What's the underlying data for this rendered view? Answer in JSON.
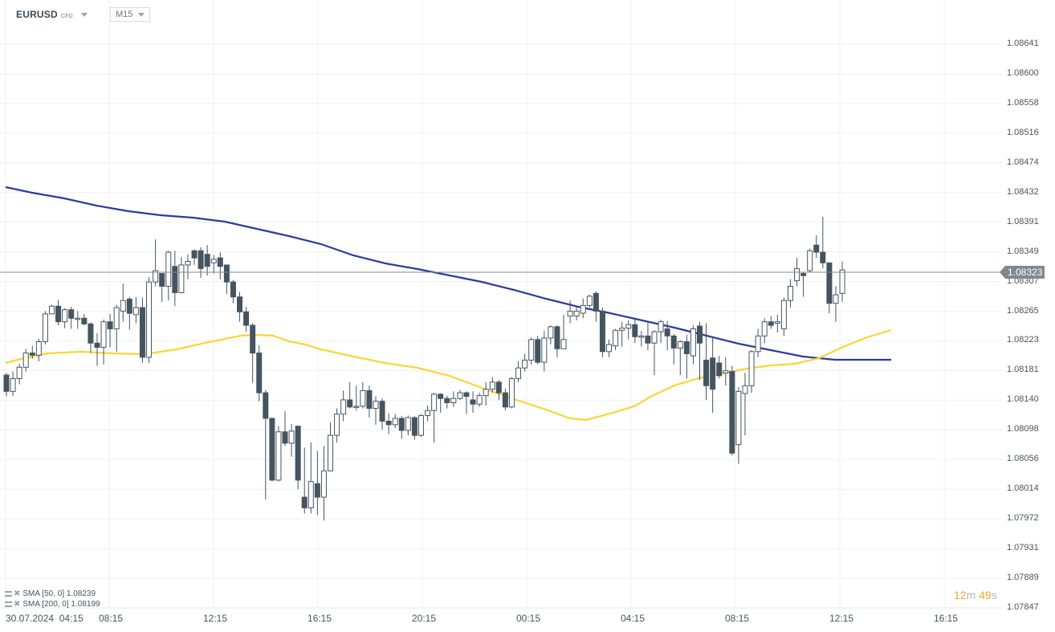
{
  "header": {
    "symbol": "EURUSD",
    "instrument_type": "CFD",
    "timeframe": "M15"
  },
  "legend": [
    {
      "label": "SMA [50, 0] 1.08239"
    },
    {
      "label": "SMA [200, 0] 1.08199"
    }
  ],
  "countdown": {
    "minutes": "12",
    "min_unit": "m",
    "seconds": "49",
    "sec_unit": "s"
  },
  "current_price": "1.08323",
  "colors": {
    "bull_fill": "#ffffff",
    "bear_fill": "#455560",
    "candle_stroke": "#455560",
    "sma50": "#fbd535",
    "sma200": "#2e3b9e",
    "grid": "#f0f0f0",
    "price_line": "#7f8a90",
    "countdown": "#f5a623"
  },
  "chart_data": {
    "type": "candlestick",
    "title": "EURUSD CFD M15",
    "xlabel": "",
    "ylabel": "",
    "y_ticks": [
      "1.08641",
      "1.08600",
      "1.08558",
      "1.08516",
      "1.08474",
      "1.08432",
      "1.08391",
      "1.08349",
      "1.08307",
      "1.08265",
      "1.08223",
      "1.08181",
      "1.08140",
      "1.08098",
      "1.08056",
      "1.08014",
      "1.07972",
      "1.07931",
      "1.07889",
      "1.07847"
    ],
    "x_ticks": [
      "30.07.2024  04:15",
      "08:15",
      "12:15",
      "16:15",
      "20:15",
      "00:15",
      "04:15",
      "08:15",
      "12:15",
      "16:15"
    ],
    "ylim": [
      1.07847,
      1.08641
    ],
    "grid": true,
    "last_price": 1.08323,
    "candles_ohlc": [
      [
        1.08175,
        1.08152,
        1.08178,
        1.08145
      ],
      [
        1.08152,
        1.0817,
        1.0818,
        1.08145
      ],
      [
        1.0817,
        1.08186,
        1.08191,
        1.08162
      ],
      [
        1.08186,
        1.08206,
        1.08212,
        1.0818
      ],
      [
        1.08206,
        1.08203,
        1.08216,
        1.08198
      ],
      [
        1.08203,
        1.08222,
        1.08226,
        1.08194
      ],
      [
        1.08222,
        1.08261,
        1.08265,
        1.08218
      ],
      [
        1.08261,
        1.08272,
        1.08274,
        1.08262
      ],
      [
        1.08272,
        1.0825,
        1.08281,
        1.08245
      ],
      [
        1.0825,
        1.08267,
        1.08269,
        1.08241
      ],
      [
        1.08267,
        1.08255,
        1.08271,
        1.0824
      ],
      [
        1.08255,
        1.08255,
        1.08265,
        1.0824
      ],
      [
        1.08255,
        1.08247,
        1.08261,
        1.08245
      ],
      [
        1.08247,
        1.0822,
        1.08249,
        1.08206
      ],
      [
        1.0822,
        1.08214,
        1.08234,
        1.08188
      ],
      [
        1.08214,
        1.0825,
        1.08253,
        1.0819
      ],
      [
        1.0825,
        1.0824,
        1.08261,
        1.08214
      ],
      [
        1.0824,
        1.0827,
        1.08274,
        1.08208
      ],
      [
        1.08265,
        1.0828,
        1.08304,
        1.0825
      ],
      [
        1.08282,
        1.08262,
        1.08285,
        1.08239
      ],
      [
        1.0826,
        1.0827,
        1.08285,
        1.08248
      ],
      [
        1.0827,
        1.082,
        1.08284,
        1.08192
      ],
      [
        1.082,
        1.08306,
        1.08313,
        1.08192
      ],
      [
        1.08306,
        1.08322,
        1.08366,
        1.083
      ],
      [
        1.08318,
        1.083,
        1.08306,
        1.08278
      ],
      [
        1.083,
        1.08348,
        1.0835,
        1.0828
      ],
      [
        1.08328,
        1.08291,
        1.0835,
        1.08272
      ],
      [
        1.08291,
        1.0833,
        1.08341,
        1.0829
      ],
      [
        1.0833,
        1.08335,
        1.08345,
        1.0831
      ],
      [
        1.0835,
        1.0834,
        1.08352,
        1.0833
      ],
      [
        1.0835,
        1.08325,
        1.08355,
        1.08312
      ],
      [
        1.08345,
        1.08328,
        1.08358,
        1.08315
      ],
      [
        1.08333,
        1.08338,
        1.08344,
        1.08318
      ],
      [
        1.0834,
        1.08328,
        1.08348,
        1.0831
      ],
      [
        1.0833,
        1.08306,
        1.0833,
        1.08289
      ],
      [
        1.08306,
        1.08285,
        1.08309,
        1.08276
      ],
      [
        1.08285,
        1.08264,
        1.08292,
        1.0825
      ],
      [
        1.08264,
        1.08245,
        1.08271,
        1.08236
      ],
      [
        1.08245,
        1.08206,
        1.08248,
        1.08164
      ],
      [
        1.08206,
        1.0815,
        1.08217,
        1.08138
      ],
      [
        1.0815,
        1.08114,
        1.08154,
        1.08
      ],
      [
        1.08114,
        1.08027,
        1.08114,
        1.08025
      ],
      [
        1.08027,
        1.08095,
        1.08103,
        1.08025
      ],
      [
        1.08095,
        1.08079,
        1.08124,
        1.08075
      ],
      [
        1.08079,
        1.08096,
        1.08106,
        1.0806
      ],
      [
        1.08103,
        1.08027,
        1.08103,
        1.08014
      ],
      [
        1.08003,
        1.07988,
        1.08073,
        1.0798
      ],
      [
        1.07988,
        1.08025,
        1.0808,
        1.0798
      ],
      [
        1.08022,
        1.08003,
        1.08068,
        1.07978
      ],
      [
        1.08003,
        1.0804,
        1.08075,
        1.0797
      ]
    ],
    "sma50_last": 1.08239,
    "sma200_last": 1.08199
  }
}
